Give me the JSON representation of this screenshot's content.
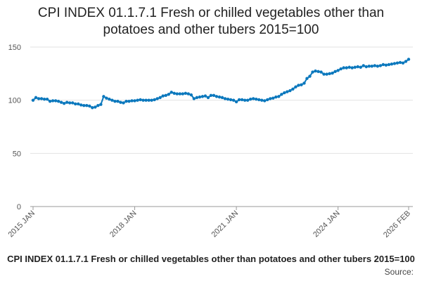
{
  "chart_data": {
    "type": "line",
    "title": "CPI INDEX 01.1.7.1 Fresh or chilled vegetables other than potatoes and other tubers 2015=100",
    "caption": "CPI INDEX 01.1.7.1 Fresh or chilled vegetables other than potatoes and other tubers 2015=100",
    "source": "Source:",
    "categories": [
      "2015 JAN",
      null,
      null,
      null,
      null,
      null,
      null,
      null,
      null,
      null,
      null,
      null,
      null,
      null,
      null,
      null,
      null,
      null,
      null,
      null,
      null,
      null,
      null,
      null,
      null,
      null,
      null,
      null,
      null,
      null,
      null,
      null,
      null,
      null,
      null,
      null,
      "2018 JAN",
      null,
      null,
      null,
      null,
      null,
      null,
      null,
      null,
      null,
      null,
      null,
      null,
      null,
      null,
      null,
      null,
      null,
      null,
      null,
      null,
      null,
      null,
      null,
      null,
      null,
      null,
      null,
      null,
      null,
      null,
      null,
      null,
      null,
      null,
      null,
      "2021 JAN",
      null,
      null,
      null,
      null,
      null,
      null,
      null,
      null,
      null,
      null,
      null,
      null,
      null,
      null,
      null,
      null,
      null,
      null,
      null,
      null,
      null,
      null,
      null,
      null,
      null,
      null,
      null,
      null,
      null,
      null,
      null,
      null,
      null,
      null,
      null,
      "2024 JAN",
      null,
      null,
      null,
      null,
      null,
      null,
      null,
      null,
      null,
      null,
      null,
      null,
      null,
      null,
      null,
      null,
      null,
      null,
      null,
      null,
      null,
      null,
      null,
      null,
      "2026 FEB"
    ],
    "series": [
      {
        "color": "#0b78bd",
        "values": [
          100,
          102.5,
          101.5,
          101.5,
          101,
          101,
          99,
          99.5,
          99.5,
          99,
          98,
          97,
          98,
          97.5,
          97.5,
          96.5,
          96.5,
          95.5,
          95,
          95,
          94.5,
          93,
          93.5,
          95,
          96,
          103.5,
          102,
          101,
          100,
          99,
          99,
          98,
          97.5,
          99,
          99,
          99.5,
          99.5,
          100,
          100.5,
          100,
          100,
          100,
          100,
          100.5,
          101.5,
          102.5,
          104,
          104.5,
          105.5,
          107.5,
          106.5,
          106,
          106,
          106,
          106.5,
          106,
          105,
          101.5,
          102.5,
          103,
          103.5,
          104,
          102.5,
          104.5,
          104.5,
          103.5,
          103,
          102.5,
          101.5,
          101,
          100.5,
          100,
          98.5,
          100.5,
          100.5,
          100,
          100,
          101,
          101.5,
          101,
          100.5,
          100,
          99.5,
          100.5,
          101.5,
          102,
          103,
          103.5,
          105.5,
          107,
          108,
          109,
          110.5,
          112.5,
          114,
          114.5,
          116,
          120.5,
          122.5,
          126.5,
          127.5,
          127,
          126.5,
          124.5,
          124.5,
          125,
          125.5,
          127,
          128,
          129.5,
          130.5,
          130.5,
          131,
          130.5,
          131,
          131.5,
          131,
          132.5,
          131.5,
          132,
          132,
          132.5,
          132,
          132.5,
          133.5,
          133,
          133.5,
          134,
          134.5,
          135,
          135.5,
          135,
          136.5,
          138.5
        ]
      }
    ],
    "ylim": [
      0,
      150
    ],
    "yticks": [
      0,
      50,
      100,
      150
    ],
    "grid": true
  }
}
